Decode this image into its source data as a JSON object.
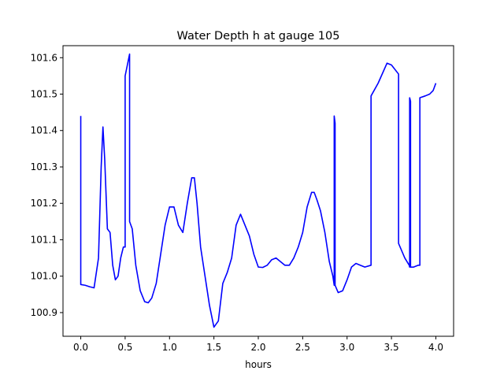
{
  "chart_data": {
    "type": "line",
    "title": "Water Depth h at gauge 105",
    "xlabel": "hours",
    "ylabel": "",
    "xlim": [
      -0.2,
      4.2
    ],
    "ylim": [
      100.835,
      101.633
    ],
    "grid": false,
    "x_ticks": [
      0.0,
      0.5,
      1.0,
      1.5,
      2.0,
      2.5,
      3.0,
      3.5,
      4.0
    ],
    "x_tick_labels": [
      "0.0",
      "0.5",
      "1.0",
      "1.5",
      "2.0",
      "2.5",
      "3.0",
      "3.5",
      "4.0"
    ],
    "y_ticks": [
      100.9,
      101.0,
      101.1,
      101.2,
      101.3,
      101.4,
      101.5,
      101.6
    ],
    "y_tick_labels": [
      "100.9",
      "101.0",
      "101.1",
      "101.2",
      "101.3",
      "101.4",
      "101.5",
      "101.6"
    ],
    "series": [
      {
        "color": "#0000ff",
        "x": [
          0.0,
          0.0,
          0.05,
          0.1,
          0.15,
          0.2,
          0.23,
          0.25,
          0.27,
          0.3,
          0.33,
          0.36,
          0.39,
          0.42,
          0.45,
          0.48,
          0.5,
          0.5,
          0.55,
          0.55,
          0.58,
          0.62,
          0.67,
          0.72,
          0.76,
          0.8,
          0.85,
          0.9,
          0.95,
          1.0,
          1.05,
          1.1,
          1.15,
          1.2,
          1.25,
          1.28,
          1.31,
          1.35,
          1.4,
          1.45,
          1.5,
          1.55,
          1.6,
          1.65,
          1.7,
          1.75,
          1.8,
          1.85,
          1.9,
          1.95,
          2.0,
          2.05,
          2.1,
          2.15,
          2.2,
          2.25,
          2.3,
          2.35,
          2.4,
          2.45,
          2.5,
          2.55,
          2.6,
          2.63,
          2.66,
          2.7,
          2.75,
          2.8,
          2.84,
          2.855,
          2.855,
          2.865,
          2.865,
          2.9,
          2.95,
          3.0,
          3.05,
          3.1,
          3.15,
          3.2,
          3.27,
          3.27,
          3.35,
          3.45,
          3.5,
          3.58,
          3.58,
          3.65,
          3.7,
          3.705,
          3.705,
          3.715,
          3.715,
          3.75,
          3.8,
          3.82,
          3.82,
          3.88,
          3.93,
          3.97,
          4.0
        ],
        "y": [
          101.44,
          100.977,
          100.975,
          100.971,
          100.968,
          101.05,
          101.3,
          101.41,
          101.32,
          101.13,
          101.12,
          101.03,
          100.99,
          101.0,
          101.05,
          101.08,
          101.08,
          101.55,
          101.61,
          101.15,
          101.13,
          101.03,
          100.96,
          100.93,
          100.927,
          100.94,
          100.98,
          101.06,
          101.14,
          101.19,
          101.19,
          101.14,
          101.12,
          101.2,
          101.27,
          101.27,
          101.2,
          101.08,
          101.0,
          100.92,
          100.86,
          100.877,
          100.98,
          101.01,
          101.05,
          101.14,
          101.17,
          101.14,
          101.11,
          101.06,
          101.025,
          101.024,
          101.03,
          101.045,
          101.05,
          101.04,
          101.03,
          101.03,
          101.05,
          101.08,
          101.12,
          101.19,
          101.23,
          101.23,
          101.21,
          101.18,
          101.12,
          101.04,
          101.0,
          100.975,
          101.44,
          101.42,
          100.975,
          100.955,
          100.96,
          100.99,
          101.025,
          101.035,
          101.03,
          101.025,
          101.03,
          101.495,
          101.53,
          101.585,
          101.58,
          101.555,
          101.09,
          101.05,
          101.03,
          101.025,
          101.49,
          101.48,
          101.025,
          101.025,
          101.03,
          101.03,
          101.49,
          101.495,
          101.5,
          101.51,
          101.53
        ]
      }
    ]
  }
}
